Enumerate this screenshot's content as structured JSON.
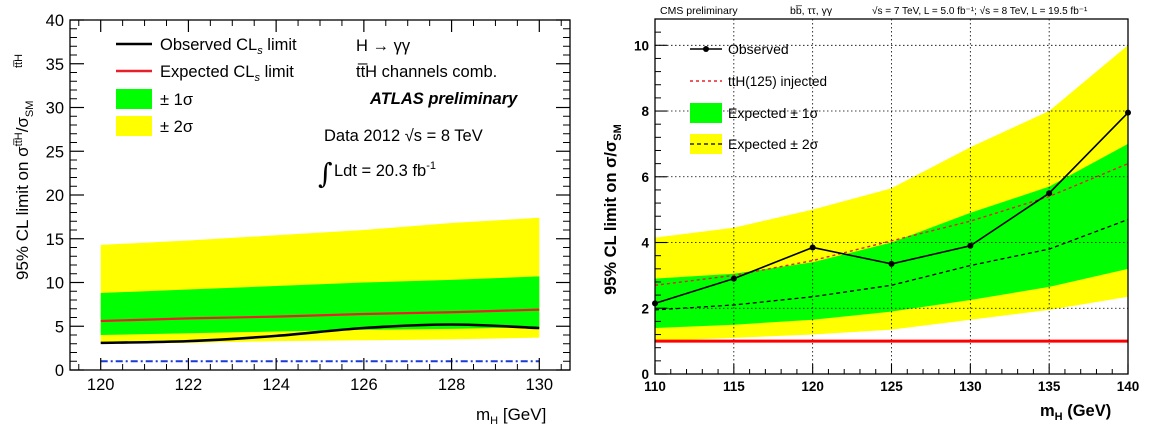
{
  "chart_data": [
    {
      "type": "line",
      "xlabel_main": "m",
      "xlabel_sub": "H",
      "xlabel_unit": " [GeV]",
      "ylabel": "95% CL limit on σ",
      "ylabel_sup": "tt̅H",
      "ylabel_den": "/σ",
      "ylabel_den_sub": "SM",
      "ylabel_den_sup": "tt̅H",
      "xlim": [
        119.3,
        130.7
      ],
      "ylim": [
        0,
        40
      ],
      "x_ticks": [
        120,
        122,
        124,
        126,
        128,
        130
      ],
      "y_ticks": [
        0,
        5,
        10,
        15,
        20,
        25,
        30,
        35,
        40
      ],
      "x": [
        120,
        122,
        124,
        126,
        128,
        130
      ],
      "series": [
        {
          "name": "Observed CLs limit",
          "values": [
            3.1,
            3.3,
            3.9,
            4.8,
            5.2,
            4.8
          ]
        },
        {
          "name": "Expected CLs limit",
          "values": [
            5.6,
            5.9,
            6.1,
            6.4,
            6.6,
            6.9
          ]
        }
      ],
      "band_1sigma": {
        "lower": [
          4.0,
          4.2,
          4.4,
          4.6,
          4.7,
          4.9
        ],
        "upper": [
          8.8,
          9.2,
          9.6,
          10.0,
          10.3,
          10.7
        ]
      },
      "band_2sigma": {
        "lower": [
          3.0,
          3.1,
          3.3,
          3.4,
          3.5,
          3.7
        ],
        "upper": [
          14.3,
          14.8,
          15.4,
          16.0,
          16.8,
          17.4
        ]
      },
      "sm_line": 1,
      "legend": {
        "observed": "Observed CL",
        "expected": "Expected CL",
        "cls_sub": "s",
        "limit_word": " limit",
        "one_sigma": "± 1σ",
        "two_sigma": "± 2σ"
      },
      "annotations": {
        "channel": "H → γγ",
        "comb": "tt̅H channels comb.",
        "experiment": "ATLAS preliminary",
        "data": "Data 2012  √s = 8 TeV",
        "lumi_integral": "∫",
        "lumi": "Ldt = 20.3 fb",
        "lumi_sup": "-1"
      },
      "colors": {
        "one_sigma": "#00ff00",
        "two_sigma": "#ffff00",
        "observed": "#000000",
        "expected": "#e8202a",
        "sm": "#1a3ad6"
      }
    },
    {
      "type": "line",
      "header_left": "CMS preliminary",
      "header_mid": "bb̅, ττ, γγ",
      "header_right": "√s = 7 TeV, L = 5.0 fb⁻¹; √s = 8 TeV, L = 19.5 fb⁻¹",
      "xlabel_main": "m",
      "xlabel_sub": "H",
      "xlabel_unit": " (GeV)",
      "ylabel": "95% CL limit on σ/σ",
      "ylabel_sub": "SM",
      "xlim": [
        110,
        140
      ],
      "ylim": [
        0,
        10.8
      ],
      "x_ticks": [
        110,
        115,
        120,
        125,
        130,
        135,
        140
      ],
      "y_ticks": [
        0,
        2,
        4,
        6,
        8,
        10
      ],
      "x": [
        110,
        115,
        120,
        125,
        130,
        135,
        140
      ],
      "series": [
        {
          "name": "Observed",
          "values": [
            2.15,
            2.9,
            3.85,
            3.35,
            3.9,
            5.5,
            7.95
          ]
        },
        {
          "name": "ttH(125) injected",
          "values": [
            2.7,
            3.0,
            3.45,
            4.05,
            4.65,
            5.4,
            6.4
          ]
        },
        {
          "name": "Expected",
          "values": [
            1.95,
            2.1,
            2.35,
            2.7,
            3.3,
            3.8,
            4.7
          ]
        }
      ],
      "band_1sigma": {
        "lower": [
          1.4,
          1.5,
          1.65,
          1.9,
          2.25,
          2.65,
          3.2
        ],
        "upper": [
          2.9,
          3.05,
          3.4,
          4.0,
          4.9,
          5.7,
          7.0
        ]
      },
      "band_2sigma": {
        "lower": [
          1.0,
          1.1,
          1.2,
          1.35,
          1.65,
          1.95,
          2.35
        ],
        "upper": [
          4.15,
          4.45,
          5.0,
          5.65,
          6.9,
          8.0,
          10.0
        ]
      },
      "sm_line": 1,
      "legend": {
        "observed": "Observed",
        "injected": "ttH(125) injected",
        "one_sigma": "Expected ± 1σ",
        "two_sigma": "Expected ± 2σ"
      },
      "colors": {
        "one_sigma": "#00ff00",
        "two_sigma": "#ffff00",
        "observed": "#000000",
        "injected": "#e8202a",
        "expected": "#000000",
        "sm": "#ff0000"
      }
    }
  ]
}
